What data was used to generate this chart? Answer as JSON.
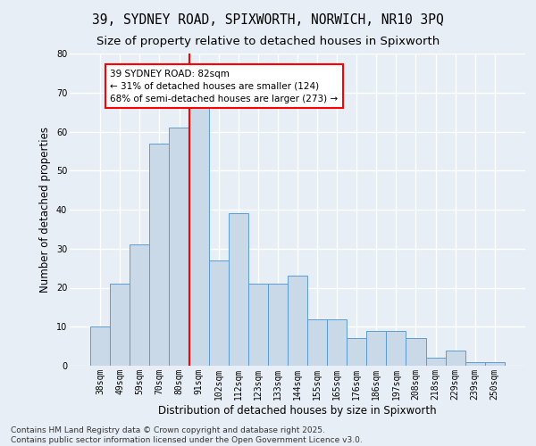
{
  "title1": "39, SYDNEY ROAD, SPIXWORTH, NORWICH, NR10 3PQ",
  "title2": "Size of property relative to detached houses in Spixworth",
  "xlabel": "Distribution of detached houses by size in Spixworth",
  "ylabel": "Number of detached properties",
  "categories": [
    "38sqm",
    "49sqm",
    "59sqm",
    "70sqm",
    "80sqm",
    "91sqm",
    "102sqm",
    "112sqm",
    "123sqm",
    "133sqm",
    "144sqm",
    "155sqm",
    "165sqm",
    "176sqm",
    "186sqm",
    "197sqm",
    "208sqm",
    "218sqm",
    "229sqm",
    "239sqm",
    "250sqm"
  ],
  "values": [
    10,
    21,
    31,
    57,
    61,
    67,
    27,
    39,
    21,
    21,
    23,
    12,
    12,
    7,
    9,
    9,
    7,
    2,
    4,
    1,
    1
  ],
  "bar_color": "#c9d9e8",
  "bar_edge_color": "#5b9bd5",
  "annotation_text": "39 SYDNEY ROAD: 82sqm\n← 31% of detached houses are smaller (124)\n68% of semi-detached houses are larger (273) →",
  "annotation_box_color": "white",
  "annotation_box_edge_color": "red",
  "vline_color": "red",
  "ylim": [
    0,
    80
  ],
  "yticks": [
    0,
    10,
    20,
    30,
    40,
    50,
    60,
    70,
    80
  ],
  "background_color": "#e8eef5",
  "grid_color": "white",
  "footer1": "Contains HM Land Registry data © Crown copyright and database right 2025.",
  "footer2": "Contains public sector information licensed under the Open Government Licence v3.0.",
  "title_fontsize": 10.5,
  "subtitle_fontsize": 9.5,
  "axis_label_fontsize": 8.5,
  "tick_fontsize": 7,
  "footer_fontsize": 6.5,
  "annotation_fontsize": 7.5
}
